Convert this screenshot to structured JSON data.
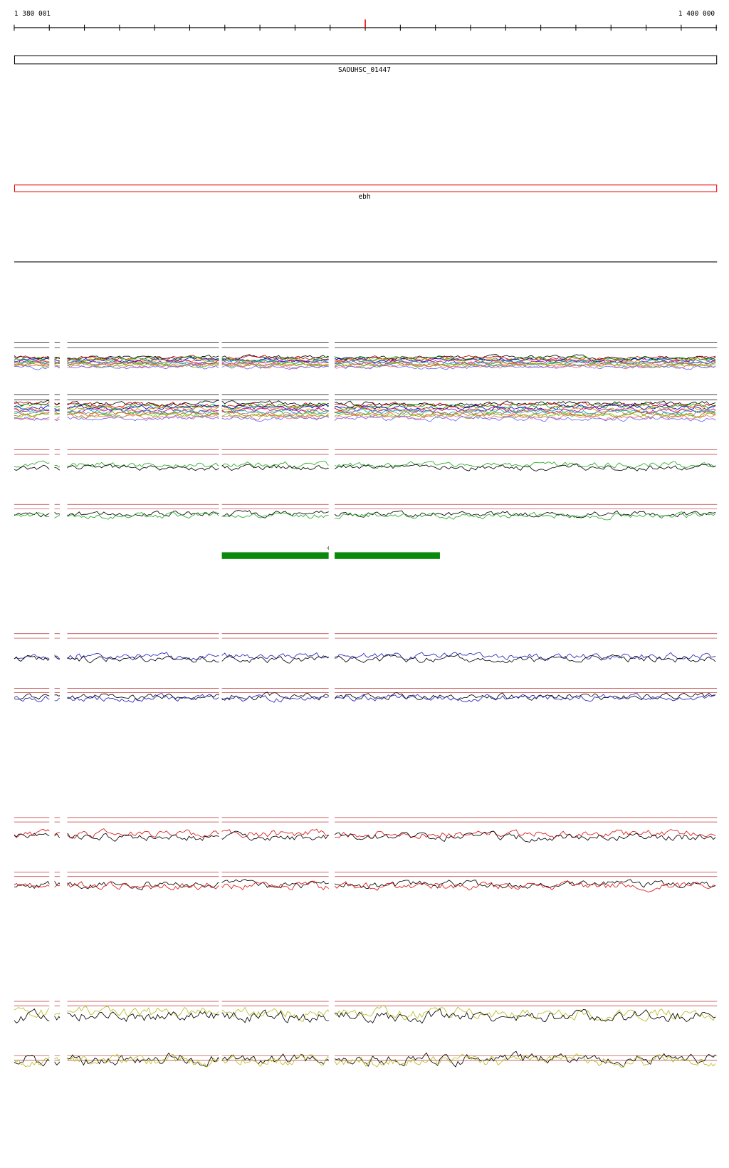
{
  "ruler": {
    "start_label": "1 380 001",
    "end_label": "1 400 000"
  },
  "features": [
    {
      "label": "SAOUHSC_01447"
    },
    {
      "label": "ebh"
    },
    {
      "label": "+"
    }
  ]
}
